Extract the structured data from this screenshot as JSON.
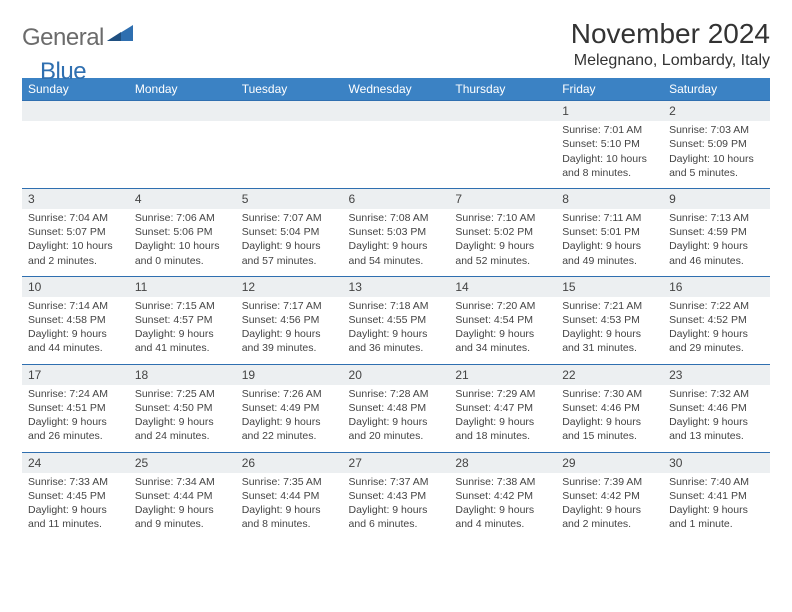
{
  "logo": {
    "general": "General",
    "blue": "Blue"
  },
  "title": "November 2024",
  "location": "Melegnano, Lombardy, Italy",
  "day_headers": [
    "Sunday",
    "Monday",
    "Tuesday",
    "Wednesday",
    "Thursday",
    "Friday",
    "Saturday"
  ],
  "colors": {
    "header_bg": "#3b82c4",
    "header_fg": "#ffffff",
    "band_bg": "#eceff1",
    "border": "#2f6fb0",
    "text": "#444444"
  },
  "weeks": [
    [
      null,
      null,
      null,
      null,
      null,
      {
        "n": "1",
        "sr": "Sunrise: 7:01 AM",
        "ss": "Sunset: 5:10 PM",
        "d1": "Daylight: 10 hours",
        "d2": "and 8 minutes."
      },
      {
        "n": "2",
        "sr": "Sunrise: 7:03 AM",
        "ss": "Sunset: 5:09 PM",
        "d1": "Daylight: 10 hours",
        "d2": "and 5 minutes."
      }
    ],
    [
      {
        "n": "3",
        "sr": "Sunrise: 7:04 AM",
        "ss": "Sunset: 5:07 PM",
        "d1": "Daylight: 10 hours",
        "d2": "and 2 minutes."
      },
      {
        "n": "4",
        "sr": "Sunrise: 7:06 AM",
        "ss": "Sunset: 5:06 PM",
        "d1": "Daylight: 10 hours",
        "d2": "and 0 minutes."
      },
      {
        "n": "5",
        "sr": "Sunrise: 7:07 AM",
        "ss": "Sunset: 5:04 PM",
        "d1": "Daylight: 9 hours",
        "d2": "and 57 minutes."
      },
      {
        "n": "6",
        "sr": "Sunrise: 7:08 AM",
        "ss": "Sunset: 5:03 PM",
        "d1": "Daylight: 9 hours",
        "d2": "and 54 minutes."
      },
      {
        "n": "7",
        "sr": "Sunrise: 7:10 AM",
        "ss": "Sunset: 5:02 PM",
        "d1": "Daylight: 9 hours",
        "d2": "and 52 minutes."
      },
      {
        "n": "8",
        "sr": "Sunrise: 7:11 AM",
        "ss": "Sunset: 5:01 PM",
        "d1": "Daylight: 9 hours",
        "d2": "and 49 minutes."
      },
      {
        "n": "9",
        "sr": "Sunrise: 7:13 AM",
        "ss": "Sunset: 4:59 PM",
        "d1": "Daylight: 9 hours",
        "d2": "and 46 minutes."
      }
    ],
    [
      {
        "n": "10",
        "sr": "Sunrise: 7:14 AM",
        "ss": "Sunset: 4:58 PM",
        "d1": "Daylight: 9 hours",
        "d2": "and 44 minutes."
      },
      {
        "n": "11",
        "sr": "Sunrise: 7:15 AM",
        "ss": "Sunset: 4:57 PM",
        "d1": "Daylight: 9 hours",
        "d2": "and 41 minutes."
      },
      {
        "n": "12",
        "sr": "Sunrise: 7:17 AM",
        "ss": "Sunset: 4:56 PM",
        "d1": "Daylight: 9 hours",
        "d2": "and 39 minutes."
      },
      {
        "n": "13",
        "sr": "Sunrise: 7:18 AM",
        "ss": "Sunset: 4:55 PM",
        "d1": "Daylight: 9 hours",
        "d2": "and 36 minutes."
      },
      {
        "n": "14",
        "sr": "Sunrise: 7:20 AM",
        "ss": "Sunset: 4:54 PM",
        "d1": "Daylight: 9 hours",
        "d2": "and 34 minutes."
      },
      {
        "n": "15",
        "sr": "Sunrise: 7:21 AM",
        "ss": "Sunset: 4:53 PM",
        "d1": "Daylight: 9 hours",
        "d2": "and 31 minutes."
      },
      {
        "n": "16",
        "sr": "Sunrise: 7:22 AM",
        "ss": "Sunset: 4:52 PM",
        "d1": "Daylight: 9 hours",
        "d2": "and 29 minutes."
      }
    ],
    [
      {
        "n": "17",
        "sr": "Sunrise: 7:24 AM",
        "ss": "Sunset: 4:51 PM",
        "d1": "Daylight: 9 hours",
        "d2": "and 26 minutes."
      },
      {
        "n": "18",
        "sr": "Sunrise: 7:25 AM",
        "ss": "Sunset: 4:50 PM",
        "d1": "Daylight: 9 hours",
        "d2": "and 24 minutes."
      },
      {
        "n": "19",
        "sr": "Sunrise: 7:26 AM",
        "ss": "Sunset: 4:49 PM",
        "d1": "Daylight: 9 hours",
        "d2": "and 22 minutes."
      },
      {
        "n": "20",
        "sr": "Sunrise: 7:28 AM",
        "ss": "Sunset: 4:48 PM",
        "d1": "Daylight: 9 hours",
        "d2": "and 20 minutes."
      },
      {
        "n": "21",
        "sr": "Sunrise: 7:29 AM",
        "ss": "Sunset: 4:47 PM",
        "d1": "Daylight: 9 hours",
        "d2": "and 18 minutes."
      },
      {
        "n": "22",
        "sr": "Sunrise: 7:30 AM",
        "ss": "Sunset: 4:46 PM",
        "d1": "Daylight: 9 hours",
        "d2": "and 15 minutes."
      },
      {
        "n": "23",
        "sr": "Sunrise: 7:32 AM",
        "ss": "Sunset: 4:46 PM",
        "d1": "Daylight: 9 hours",
        "d2": "and 13 minutes."
      }
    ],
    [
      {
        "n": "24",
        "sr": "Sunrise: 7:33 AM",
        "ss": "Sunset: 4:45 PM",
        "d1": "Daylight: 9 hours",
        "d2": "and 11 minutes."
      },
      {
        "n": "25",
        "sr": "Sunrise: 7:34 AM",
        "ss": "Sunset: 4:44 PM",
        "d1": "Daylight: 9 hours",
        "d2": "and 9 minutes."
      },
      {
        "n": "26",
        "sr": "Sunrise: 7:35 AM",
        "ss": "Sunset: 4:44 PM",
        "d1": "Daylight: 9 hours",
        "d2": "and 8 minutes."
      },
      {
        "n": "27",
        "sr": "Sunrise: 7:37 AM",
        "ss": "Sunset: 4:43 PM",
        "d1": "Daylight: 9 hours",
        "d2": "and 6 minutes."
      },
      {
        "n": "28",
        "sr": "Sunrise: 7:38 AM",
        "ss": "Sunset: 4:42 PM",
        "d1": "Daylight: 9 hours",
        "d2": "and 4 minutes."
      },
      {
        "n": "29",
        "sr": "Sunrise: 7:39 AM",
        "ss": "Sunset: 4:42 PM",
        "d1": "Daylight: 9 hours",
        "d2": "and 2 minutes."
      },
      {
        "n": "30",
        "sr": "Sunrise: 7:40 AM",
        "ss": "Sunset: 4:41 PM",
        "d1": "Daylight: 9 hours",
        "d2": "and 1 minute."
      }
    ]
  ]
}
